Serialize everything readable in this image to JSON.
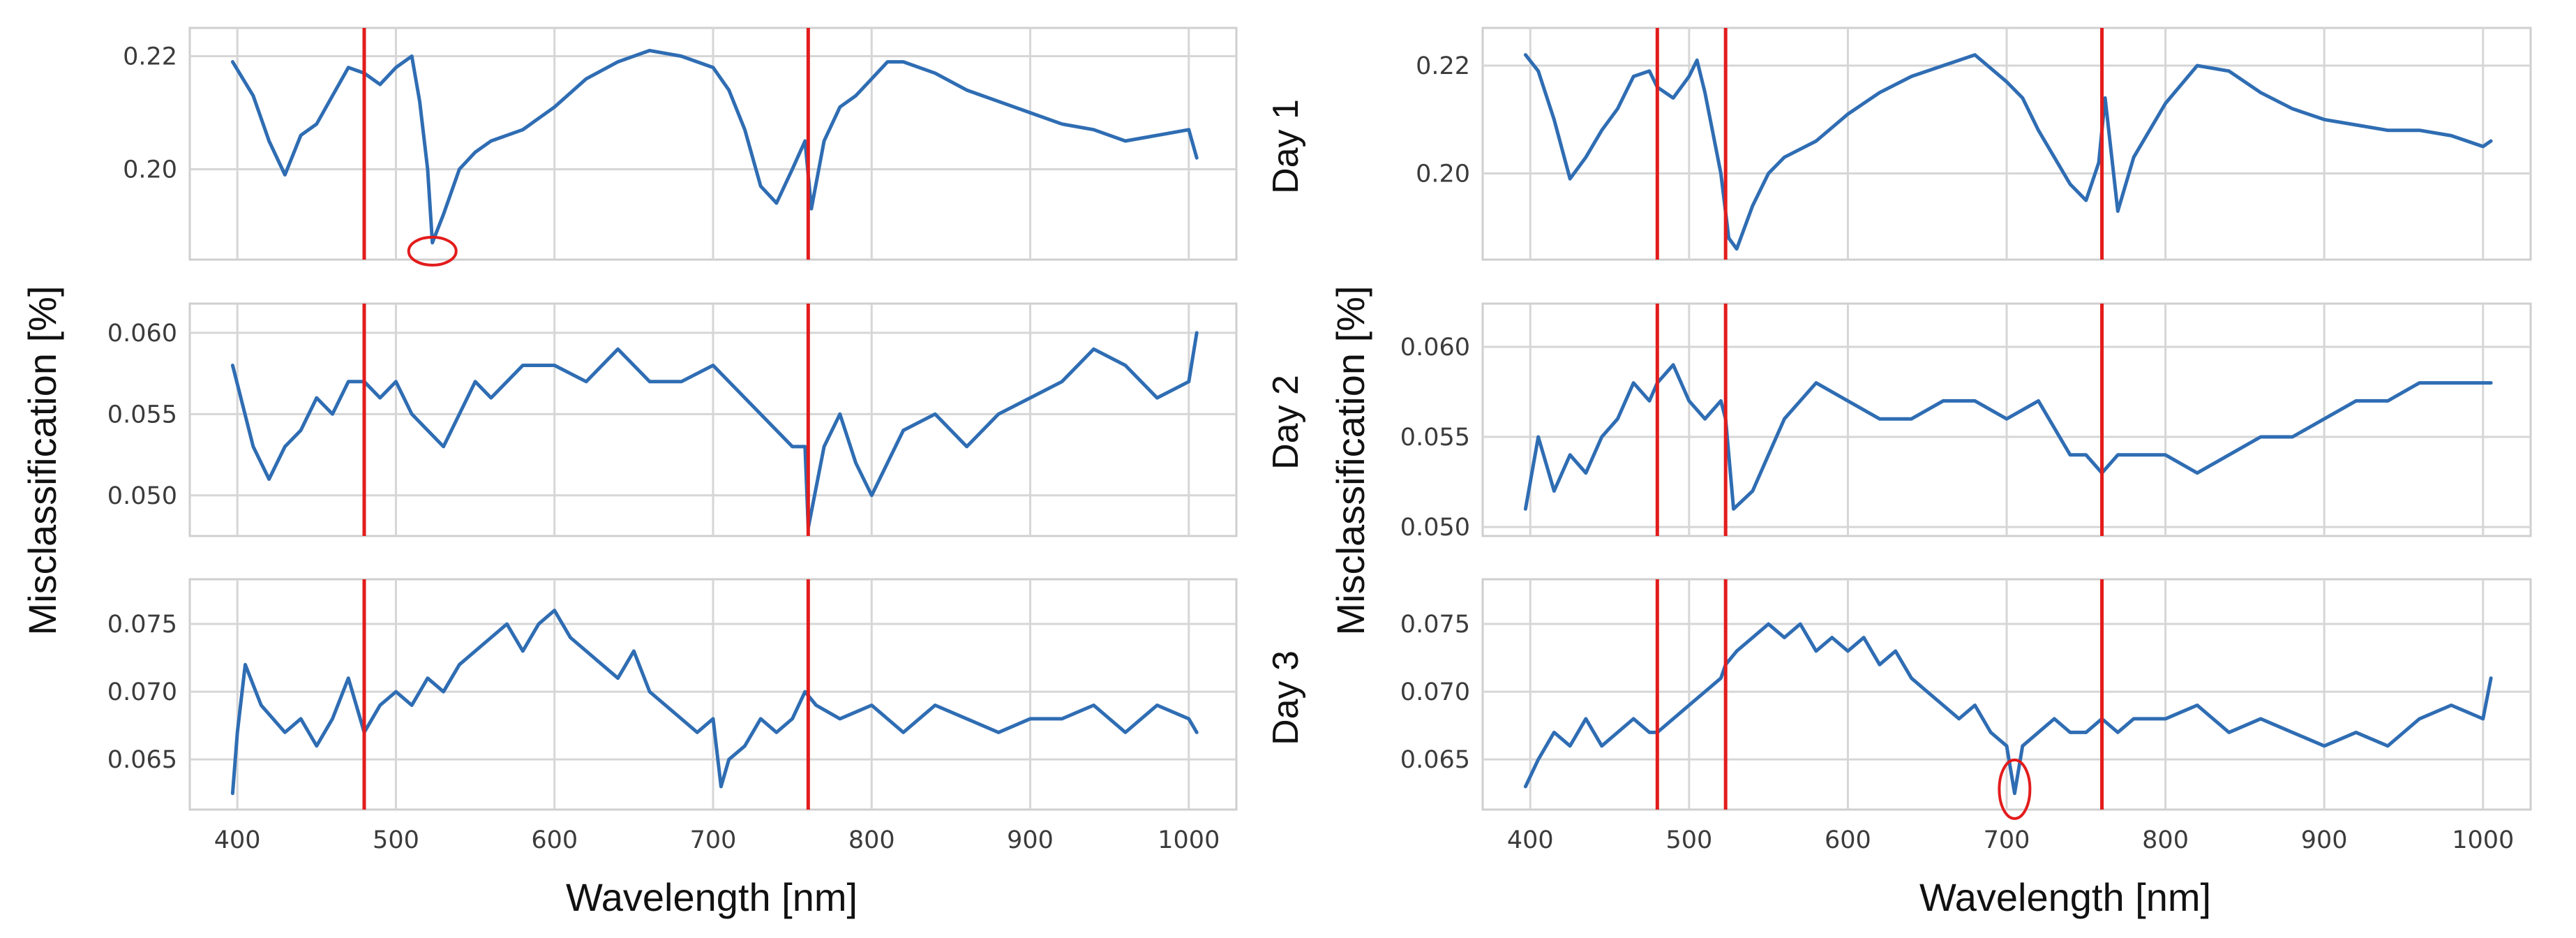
{
  "colors": {
    "series": "#2f6db3",
    "marker": "#e31c1c",
    "grid": "#d6d6d6",
    "frame": "#cfcfcf"
  },
  "chart_data": [
    {
      "type": "line",
      "xlabel": "Wavelength [nm]",
      "ylabel": "Misclassification [%]",
      "xlim": [
        370,
        1030
      ],
      "x_ticks": [
        400,
        500,
        600,
        700,
        800,
        900,
        1000
      ],
      "x_tick_labels": [
        "400",
        "500",
        "600",
        "700",
        "800",
        "900",
        "1000"
      ],
      "grid": true,
      "panels": [
        {
          "day": "Day 1",
          "ylim": [
            0.184,
            0.225
          ],
          "y_ticks": [
            0.2,
            0.22
          ],
          "y_tick_labels": [
            "0.20",
            "0.22"
          ],
          "markers": [
            480,
            760
          ],
          "highlight": {
            "x": 523,
            "y": 0.1855
          },
          "series": [
            {
              "x": [
                397,
                410,
                420,
                430,
                440,
                450,
                460,
                470,
                480,
                490,
                500,
                510,
                515,
                520,
                523,
                530,
                540,
                550,
                560,
                580,
                600,
                620,
                640,
                660,
                680,
                700,
                710,
                720,
                730,
                740,
                750,
                758,
                762,
                770,
                780,
                790,
                800,
                810,
                820,
                840,
                860,
                880,
                900,
                920,
                940,
                960,
                980,
                1000,
                1005
              ],
              "values": [
                0.219,
                0.213,
                0.205,
                0.199,
                0.206,
                0.208,
                0.213,
                0.218,
                0.217,
                0.215,
                0.218,
                0.22,
                0.212,
                0.2,
                0.187,
                0.192,
                0.2,
                0.203,
                0.205,
                0.207,
                0.211,
                0.216,
                0.219,
                0.221,
                0.22,
                0.218,
                0.214,
                0.207,
                0.197,
                0.194,
                0.2,
                0.205,
                0.193,
                0.205,
                0.211,
                0.213,
                0.216,
                0.219,
                0.219,
                0.217,
                0.214,
                0.212,
                0.21,
                0.208,
                0.207,
                0.205,
                0.206,
                0.207,
                0.202
              ]
            }
          ]
        },
        {
          "day": "Day 2",
          "ylim": [
            0.0475,
            0.0618
          ],
          "y_ticks": [
            0.05,
            0.055,
            0.06
          ],
          "y_tick_labels": [
            "0.050",
            "0.055",
            "0.060"
          ],
          "markers": [
            480,
            760
          ],
          "series": [
            {
              "x": [
                397,
                410,
                420,
                430,
                440,
                450,
                460,
                470,
                480,
                490,
                500,
                510,
                520,
                530,
                540,
                550,
                560,
                580,
                600,
                620,
                640,
                660,
                680,
                700,
                720,
                740,
                750,
                758,
                760,
                770,
                780,
                790,
                800,
                820,
                840,
                860,
                880,
                900,
                920,
                940,
                960,
                980,
                1000,
                1005
              ],
              "values": [
                0.058,
                0.053,
                0.051,
                0.053,
                0.054,
                0.056,
                0.055,
                0.057,
                0.057,
                0.056,
                0.057,
                0.055,
                0.054,
                0.053,
                0.055,
                0.057,
                0.056,
                0.058,
                0.058,
                0.057,
                0.059,
                0.057,
                0.057,
                0.058,
                0.056,
                0.054,
                0.053,
                0.053,
                0.048,
                0.053,
                0.055,
                0.052,
                0.05,
                0.054,
                0.055,
                0.053,
                0.055,
                0.056,
                0.057,
                0.059,
                0.058,
                0.056,
                0.057,
                0.06
              ]
            }
          ]
        },
        {
          "day": "Day 3",
          "ylim": [
            0.0613,
            0.0783
          ],
          "y_ticks": [
            0.065,
            0.07,
            0.075
          ],
          "y_tick_labels": [
            "0.065",
            "0.070",
            "0.075"
          ],
          "markers": [
            480,
            760
          ],
          "series": [
            {
              "x": [
                397,
                400,
                405,
                415,
                430,
                440,
                450,
                460,
                470,
                480,
                490,
                500,
                510,
                520,
                530,
                540,
                550,
                560,
                570,
                580,
                590,
                600,
                610,
                620,
                630,
                640,
                650,
                660,
                670,
                680,
                690,
                700,
                705,
                710,
                720,
                730,
                740,
                750,
                758,
                765,
                780,
                800,
                820,
                840,
                860,
                880,
                900,
                920,
                940,
                960,
                980,
                1000,
                1005
              ],
              "values": [
                0.0625,
                0.067,
                0.072,
                0.069,
                0.067,
                0.068,
                0.066,
                0.068,
                0.071,
                0.067,
                0.069,
                0.07,
                0.069,
                0.071,
                0.07,
                0.072,
                0.073,
                0.074,
                0.075,
                0.073,
                0.075,
                0.076,
                0.074,
                0.073,
                0.072,
                0.071,
                0.073,
                0.07,
                0.069,
                0.068,
                0.067,
                0.068,
                0.063,
                0.065,
                0.066,
                0.068,
                0.067,
                0.068,
                0.07,
                0.069,
                0.068,
                0.069,
                0.067,
                0.069,
                0.068,
                0.067,
                0.068,
                0.068,
                0.069,
                0.067,
                0.069,
                0.068,
                0.067
              ]
            }
          ]
        }
      ]
    },
    {
      "type": "line",
      "xlabel": "Wavelength [nm]",
      "ylabel": "Misclassification [%]",
      "xlim": [
        370,
        1030
      ],
      "x_ticks": [
        400,
        500,
        600,
        700,
        800,
        900,
        1000
      ],
      "x_tick_labels": [
        "400",
        "500",
        "600",
        "700",
        "800",
        "900",
        "1000"
      ],
      "grid": true,
      "panels": [
        {
          "day": "Day 1",
          "ylim": [
            0.184,
            0.227
          ],
          "y_ticks": [
            0.2,
            0.22
          ],
          "y_tick_labels": [
            "0.20",
            "0.22"
          ],
          "markers": [
            480,
            523,
            760
          ],
          "series": [
            {
              "x": [
                397,
                405,
                415,
                425,
                435,
                445,
                455,
                465,
                475,
                480,
                490,
                500,
                505,
                510,
                520,
                525,
                530,
                540,
                550,
                560,
                580,
                600,
                620,
                640,
                660,
                680,
                700,
                710,
                720,
                730,
                740,
                750,
                758,
                762,
                770,
                780,
                800,
                820,
                840,
                860,
                880,
                900,
                920,
                940,
                960,
                980,
                1000,
                1005
              ],
              "values": [
                0.222,
                0.219,
                0.21,
                0.199,
                0.203,
                0.208,
                0.212,
                0.218,
                0.219,
                0.216,
                0.214,
                0.218,
                0.221,
                0.215,
                0.2,
                0.188,
                0.186,
                0.194,
                0.2,
                0.203,
                0.206,
                0.211,
                0.215,
                0.218,
                0.22,
                0.222,
                0.217,
                0.214,
                0.208,
                0.203,
                0.198,
                0.195,
                0.202,
                0.214,
                0.193,
                0.203,
                0.213,
                0.22,
                0.219,
                0.215,
                0.212,
                0.21,
                0.209,
                0.208,
                0.208,
                0.207,
                0.205,
                0.206
              ]
            }
          ]
        },
        {
          "day": "Day 2",
          "ylim": [
            0.0495,
            0.0624
          ],
          "y_ticks": [
            0.05,
            0.055,
            0.06
          ],
          "y_tick_labels": [
            "0.050",
            "0.055",
            "0.060"
          ],
          "markers": [
            480,
            523,
            760
          ],
          "series": [
            {
              "x": [
                397,
                405,
                415,
                425,
                435,
                445,
                455,
                465,
                475,
                480,
                490,
                500,
                510,
                520,
                523,
                528,
                540,
                550,
                560,
                570,
                580,
                600,
                620,
                640,
                660,
                680,
                700,
                720,
                740,
                750,
                760,
                770,
                780,
                800,
                820,
                840,
                860,
                880,
                900,
                920,
                940,
                960,
                980,
                1000,
                1005
              ],
              "values": [
                0.051,
                0.055,
                0.052,
                0.054,
                0.053,
                0.055,
                0.056,
                0.058,
                0.057,
                0.058,
                0.059,
                0.057,
                0.056,
                0.057,
                0.056,
                0.051,
                0.052,
                0.054,
                0.056,
                0.057,
                0.058,
                0.057,
                0.056,
                0.056,
                0.057,
                0.057,
                0.056,
                0.057,
                0.054,
                0.054,
                0.053,
                0.054,
                0.054,
                0.054,
                0.053,
                0.054,
                0.055,
                0.055,
                0.056,
                0.057,
                0.057,
                0.058,
                0.058,
                0.058,
                0.058
              ]
            }
          ]
        },
        {
          "day": "Day 3",
          "ylim": [
            0.0613,
            0.0783
          ],
          "y_ticks": [
            0.065,
            0.07,
            0.075
          ],
          "y_tick_labels": [
            "0.065",
            "0.070",
            "0.075"
          ],
          "markers": [
            480,
            523,
            760
          ],
          "highlight": {
            "x": 705,
            "y": 0.0628
          },
          "series": [
            {
              "x": [
                397,
                405,
                415,
                425,
                435,
                445,
                455,
                465,
                475,
                480,
                490,
                500,
                510,
                520,
                523,
                530,
                540,
                550,
                560,
                570,
                580,
                590,
                600,
                610,
                620,
                630,
                640,
                650,
                660,
                670,
                680,
                690,
                700,
                705,
                710,
                720,
                730,
                740,
                750,
                760,
                770,
                780,
                800,
                820,
                840,
                860,
                880,
                900,
                920,
                940,
                960,
                980,
                1000,
                1005
              ],
              "values": [
                0.063,
                0.065,
                0.067,
                0.066,
                0.068,
                0.066,
                0.067,
                0.068,
                0.067,
                0.067,
                0.068,
                0.069,
                0.07,
                0.071,
                0.072,
                0.073,
                0.074,
                0.075,
                0.074,
                0.075,
                0.073,
                0.074,
                0.073,
                0.074,
                0.072,
                0.073,
                0.071,
                0.07,
                0.069,
                0.068,
                0.069,
                0.067,
                0.066,
                0.0625,
                0.066,
                0.067,
                0.068,
                0.067,
                0.067,
                0.068,
                0.067,
                0.068,
                0.068,
                0.069,
                0.067,
                0.068,
                0.067,
                0.066,
                0.067,
                0.066,
                0.068,
                0.069,
                0.068,
                0.071
              ]
            }
          ]
        }
      ]
    }
  ]
}
